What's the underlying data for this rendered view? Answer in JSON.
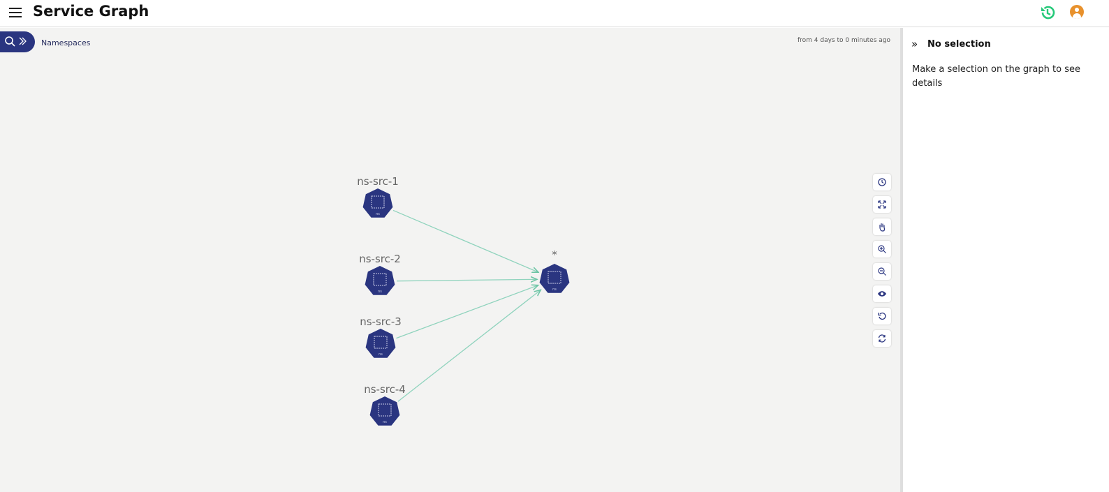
{
  "header": {
    "title": "Service Graph",
    "menu_icon": "hamburger-icon",
    "history_icon": "history-icon",
    "user_icon": "user-avatar-icon"
  },
  "toolbar": {
    "namespaces_label": "Namespaces",
    "time_range": "from 4 days to 0 minutes ago"
  },
  "graph": {
    "nodes": [
      {
        "id": "ns-src-1",
        "label": "ns-src-1",
        "badge": "ns"
      },
      {
        "id": "ns-src-2",
        "label": "ns-src-2",
        "badge": "ns"
      },
      {
        "id": "ns-src-3",
        "label": "ns-src-3",
        "badge": "ns"
      },
      {
        "id": "ns-src-4",
        "label": "ns-src-4",
        "badge": "ns"
      },
      {
        "id": "target",
        "label": "*",
        "badge": "ns"
      }
    ],
    "edges": [
      [
        "ns-src-1",
        "target"
      ],
      [
        "ns-src-2",
        "target"
      ],
      [
        "ns-src-3",
        "target"
      ],
      [
        "ns-src-4",
        "target"
      ]
    ],
    "node_color": "#2a3580",
    "edge_color": "#8fd3bd"
  },
  "controls": [
    "clock-icon",
    "fit-icon",
    "pan-icon",
    "zoom-in-icon",
    "zoom-out-icon",
    "eye-icon",
    "undo-icon",
    "refresh-icon"
  ],
  "panel": {
    "title": "No selection",
    "message": "Make a selection on the graph to see details"
  }
}
